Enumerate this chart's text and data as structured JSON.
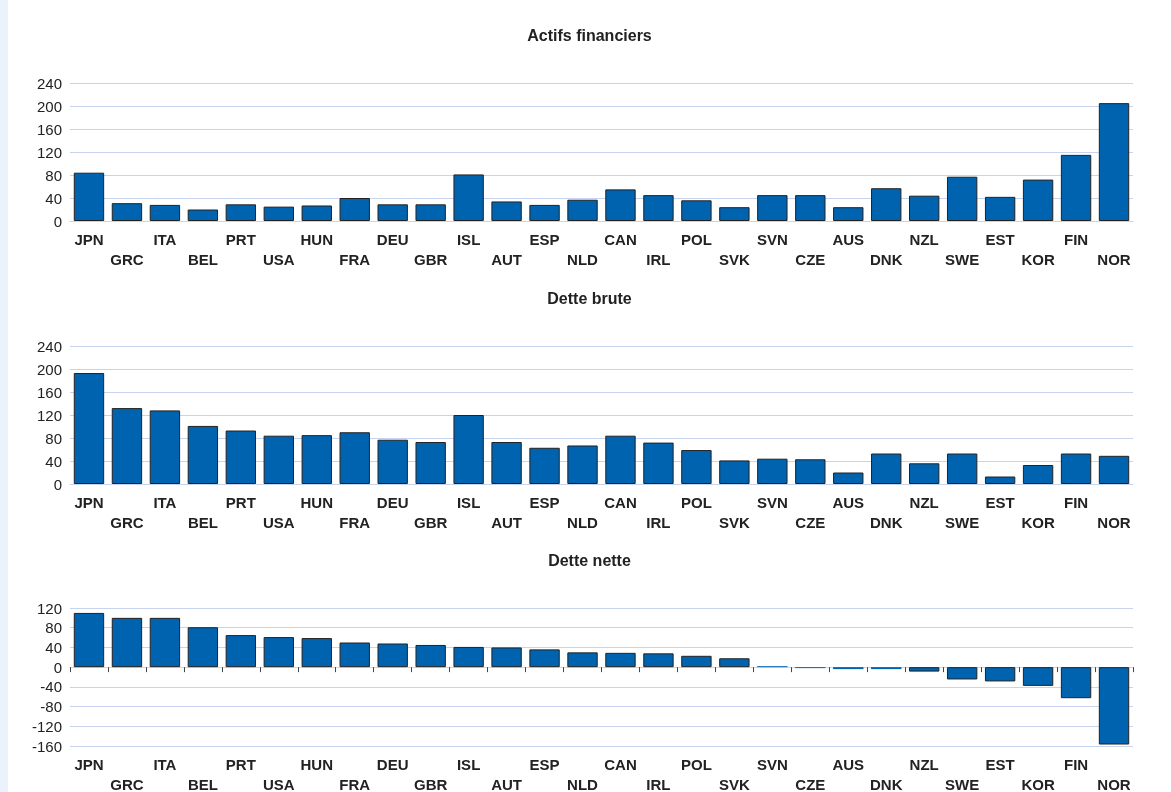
{
  "chart_data": [
    {
      "type": "bar",
      "title": "Actifs financiers",
      "categories": [
        "JPN",
        "GRC",
        "ITA",
        "BEL",
        "PRT",
        "USA",
        "HUN",
        "FRA",
        "DEU",
        "GBR",
        "ISL",
        "AUT",
        "ESP",
        "NLD",
        "CAN",
        "IRL",
        "POL",
        "SVK",
        "SVN",
        "CZE",
        "AUS",
        "DNK",
        "NZL",
        "SWE",
        "EST",
        "KOR",
        "FIN",
        "NOR"
      ],
      "values": [
        84,
        31,
        28,
        20,
        29,
        25,
        27,
        40,
        29,
        29,
        81,
        34,
        28,
        37,
        55,
        45,
        36,
        24,
        45,
        45,
        24,
        57,
        44,
        77,
        42,
        72,
        115,
        205
      ],
      "color": "#0063b0",
      "ylim": [
        0,
        240
      ],
      "yticks": [
        0,
        40,
        80,
        120,
        160,
        200,
        240
      ],
      "grid": "y"
    },
    {
      "type": "bar",
      "title": "Dette brute",
      "categories": [
        "JPN",
        "GRC",
        "ITA",
        "BEL",
        "PRT",
        "USA",
        "HUN",
        "FRA",
        "DEU",
        "GBR",
        "ISL",
        "AUT",
        "ESP",
        "NLD",
        "CAN",
        "IRL",
        "POL",
        "SVK",
        "SVN",
        "CZE",
        "AUS",
        "DNK",
        "NZL",
        "SWE",
        "EST",
        "KOR",
        "FIN",
        "NOR"
      ],
      "values": [
        193,
        132,
        128,
        101,
        93,
        84,
        85,
        90,
        77,
        73,
        120,
        73,
        63,
        67,
        84,
        72,
        59,
        41,
        44,
        43,
        20,
        53,
        36,
        53,
        13,
        33,
        53,
        49
      ],
      "color": "#0063b0",
      "ylim": [
        0,
        240
      ],
      "yticks": [
        0,
        40,
        80,
        120,
        160,
        200,
        240
      ],
      "grid": "y"
    },
    {
      "type": "bar",
      "title": "Dette nette",
      "categories": [
        "JPN",
        "GRC",
        "ITA",
        "BEL",
        "PRT",
        "USA",
        "HUN",
        "FRA",
        "DEU",
        "GBR",
        "ISL",
        "AUT",
        "ESP",
        "NLD",
        "CAN",
        "IRL",
        "POL",
        "SVK",
        "SVN",
        "CZE",
        "AUS",
        "DNK",
        "NZL",
        "SWE",
        "EST",
        "KOR",
        "FIN",
        "NOR"
      ],
      "values": [
        110,
        100,
        100,
        81,
        65,
        61,
        59,
        50,
        48,
        45,
        41,
        40,
        36,
        30,
        29,
        28,
        23,
        18,
        2,
        -2,
        -4,
        -4,
        -9,
        -25,
        -29,
        -38,
        -63,
        -157
      ],
      "color": "#0063b0",
      "ylim": [
        -160,
        120
      ],
      "yticks": [
        -160,
        -120,
        -80,
        -40,
        0,
        40,
        80,
        120
      ],
      "grid": "y"
    }
  ]
}
